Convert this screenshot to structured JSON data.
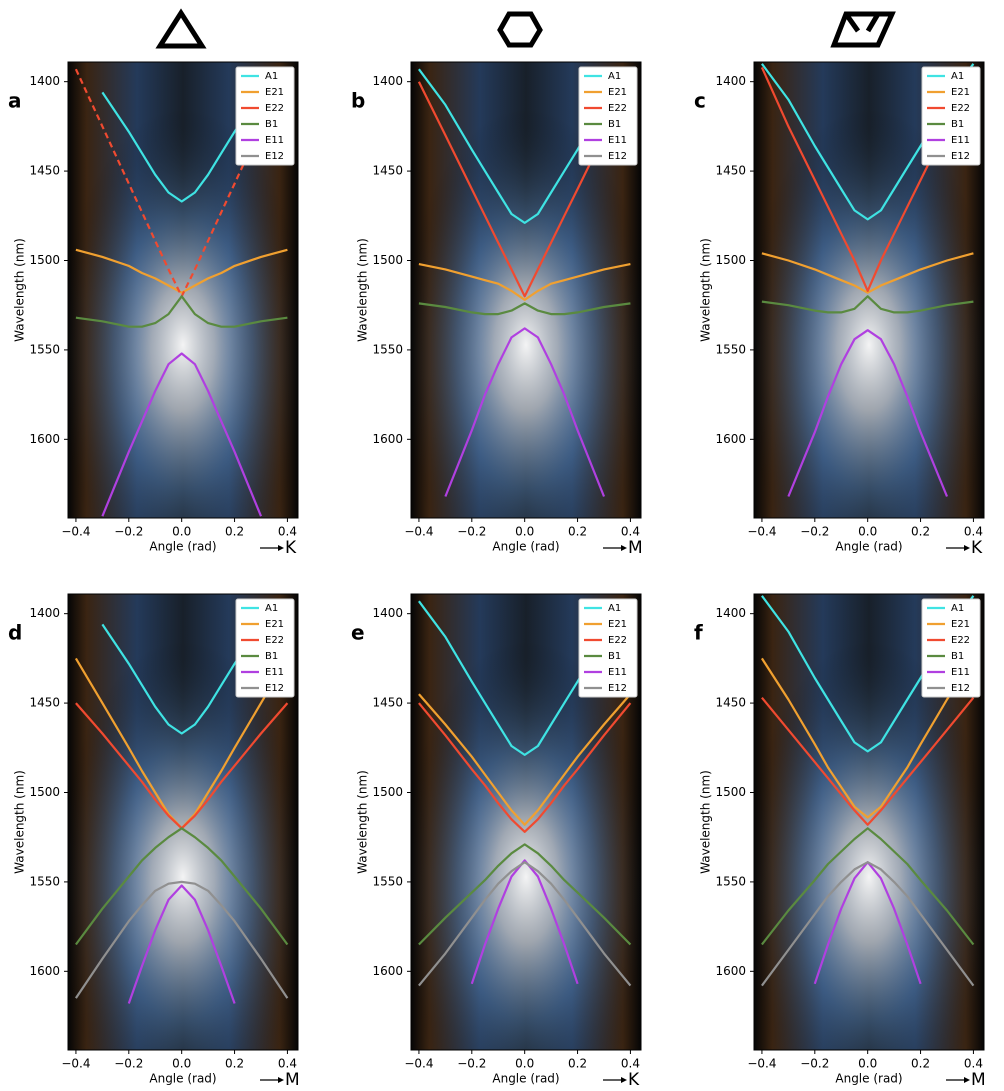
{
  "chart_data": [
    {
      "type": "line",
      "label": "a",
      "direction": "K",
      "xlabel": "Angle (rad)",
      "ylabel": "Wavelength (nm)",
      "x": [
        -0.4,
        -0.3,
        -0.2,
        -0.15,
        -0.1,
        -0.05,
        0,
        0.05,
        0.1,
        0.15,
        0.2,
        0.3,
        0.4
      ],
      "xlim": [
        -0.43,
        0.44
      ],
      "ylim": [
        1389,
        1644
      ],
      "y_inverted": true,
      "xticks": [
        {
          "value": -0.4,
          "label": "−0.4"
        },
        {
          "value": -0.2,
          "label": "−0.2"
        },
        {
          "value": 0,
          "label": "0.0"
        },
        0.2,
        0.4
      ],
      "yticks": [
        1400,
        1450,
        1500,
        1550,
        1600
      ],
      "legend": "upper right",
      "series": [
        {
          "name": "A1",
          "color": "#3fe3e3",
          "values": [
            null,
            1406,
            1428,
            1440,
            1452,
            1462,
            1467,
            1462,
            1452,
            1440,
            1428,
            1406,
            null
          ]
        },
        {
          "name": "E21",
          "color": "#f0a030",
          "values": [
            1494,
            1498,
            1503,
            1507,
            1510,
            1514,
            1518,
            1514,
            1510,
            1507,
            1503,
            1498,
            1494
          ]
        },
        {
          "name": "E22",
          "color": "#f04a30",
          "dashed": true,
          "values": [
            1393,
            1425,
            1457,
            1473,
            1489,
            1505,
            1520,
            1505,
            1489,
            1473,
            1457,
            1425,
            1393
          ]
        },
        {
          "name": "B1",
          "color": "#5a8a40",
          "values": [
            1532,
            1534,
            1537,
            1537,
            1535,
            1530,
            1520,
            1530,
            1535,
            1537,
            1537,
            1534,
            1532
          ]
        },
        {
          "name": "E11",
          "color": "#b040e0",
          "values": [
            null,
            1643,
            1607,
            1590,
            1573,
            1558,
            1552,
            1558,
            1573,
            1590,
            1607,
            1643,
            null
          ]
        },
        {
          "name": "E12",
          "color": "#909090",
          "values": [
            null,
            null,
            null,
            null,
            null,
            null,
            null,
            null,
            null,
            null,
            null,
            null,
            null
          ]
        }
      ]
    },
    {
      "type": "line",
      "label": "b",
      "direction": "M",
      "xlabel": "Angle (rad)",
      "ylabel": "Wavelength (nm)",
      "x": [
        -0.4,
        -0.3,
        -0.2,
        -0.15,
        -0.1,
        -0.05,
        0,
        0.05,
        0.1,
        0.15,
        0.2,
        0.3,
        0.4
      ],
      "xlim": [
        -0.43,
        0.44
      ],
      "ylim": [
        1389,
        1644
      ],
      "y_inverted": true,
      "xticks": [
        {
          "value": -0.4,
          "label": "−0.4"
        },
        {
          "value": -0.2,
          "label": "−0.2"
        },
        {
          "value": 0,
          "label": "0.0"
        },
        0.2,
        0.4
      ],
      "yticks": [
        1400,
        1450,
        1500,
        1550,
        1600
      ],
      "legend": "upper right",
      "series": [
        {
          "name": "A1",
          "color": "#3fe3e3",
          "values": [
            1393,
            1413,
            1438,
            1450,
            1462,
            1474,
            1479,
            1474,
            1462,
            1450,
            1438,
            1413,
            1393
          ]
        },
        {
          "name": "E21",
          "color": "#f0a030",
          "values": [
            1502,
            1505,
            1509,
            1511,
            1513,
            1517,
            1522,
            1517,
            1513,
            1511,
            1509,
            1505,
            1502
          ]
        },
        {
          "name": "E22",
          "color": "#f04a30",
          "values": [
            1400,
            1430,
            1460,
            1475,
            1490,
            1505,
            1520,
            1505,
            1490,
            1475,
            1460,
            1430,
            1400
          ]
        },
        {
          "name": "B1",
          "color": "#5a8a40",
          "values": [
            1524,
            1526,
            1529,
            1530,
            1530,
            1528,
            1524,
            1528,
            1530,
            1530,
            1529,
            1526,
            1524
          ]
        },
        {
          "name": "E11",
          "color": "#b040e0",
          "values": [
            null,
            1632,
            1595,
            1575,
            1558,
            1543,
            1538,
            1543,
            1558,
            1575,
            1595,
            1632,
            null
          ]
        },
        {
          "name": "E12",
          "color": "#909090",
          "values": [
            null,
            null,
            null,
            null,
            null,
            null,
            null,
            null,
            null,
            null,
            null,
            null,
            null
          ]
        }
      ]
    },
    {
      "type": "line",
      "label": "c",
      "direction": "K",
      "xlabel": "Angle (rad)",
      "ylabel": "Wavelength (nm)",
      "x": [
        -0.4,
        -0.3,
        -0.2,
        -0.15,
        -0.1,
        -0.05,
        0,
        0.05,
        0.1,
        0.15,
        0.2,
        0.3,
        0.4
      ],
      "xlim": [
        -0.43,
        0.44
      ],
      "ylim": [
        1389,
        1644
      ],
      "y_inverted": true,
      "xticks": [
        {
          "value": -0.4,
          "label": "−0.4"
        },
        {
          "value": -0.2,
          "label": "−0.2"
        },
        {
          "value": 0,
          "label": "0.0"
        },
        0.2,
        0.4
      ],
      "yticks": [
        1400,
        1450,
        1500,
        1550,
        1600
      ],
      "legend": "upper right",
      "series": [
        {
          "name": "A1",
          "color": "#3fe3e3",
          "values": [
            1390,
            1410,
            1436,
            1448,
            1460,
            1472,
            1477,
            1472,
            1460,
            1448,
            1436,
            1410,
            1390
          ]
        },
        {
          "name": "E21",
          "color": "#f0a030",
          "values": [
            1496,
            1500,
            1505,
            1508,
            1511,
            1514,
            1518,
            1514,
            1511,
            1508,
            1505,
            1500,
            1496
          ]
        },
        {
          "name": "E22",
          "color": "#f04a30",
          "values": [
            1392,
            1425,
            1455,
            1470,
            1485,
            1500,
            1517,
            1500,
            1485,
            1470,
            1455,
            1425,
            1392
          ]
        },
        {
          "name": "B1",
          "color": "#5a8a40",
          "values": [
            1523,
            1525,
            1528,
            1529,
            1529,
            1527,
            1520,
            1527,
            1529,
            1529,
            1528,
            1525,
            1523
          ]
        },
        {
          "name": "E11",
          "color": "#b040e0",
          "values": [
            null,
            1632,
            1596,
            1576,
            1558,
            1544,
            1539,
            1544,
            1558,
            1576,
            1596,
            1632,
            null
          ]
        },
        {
          "name": "E12",
          "color": "#909090",
          "values": [
            null,
            null,
            null,
            null,
            null,
            null,
            null,
            null,
            null,
            null,
            null,
            null,
            null
          ]
        }
      ]
    },
    {
      "type": "line",
      "label": "d",
      "direction": "M",
      "xlabel": "Angle (rad)",
      "ylabel": "Wavelength (nm)",
      "x": [
        -0.4,
        -0.3,
        -0.2,
        -0.15,
        -0.1,
        -0.05,
        0,
        0.05,
        0.1,
        0.15,
        0.2,
        0.3,
        0.4
      ],
      "xlim": [
        -0.43,
        0.44
      ],
      "ylim": [
        1389,
        1644
      ],
      "y_inverted": true,
      "xticks": [
        {
          "value": -0.4,
          "label": "−0.4"
        },
        {
          "value": -0.2,
          "label": "−0.2"
        },
        {
          "value": 0,
          "label": "0.0"
        },
        0.2,
        0.4
      ],
      "yticks": [
        1400,
        1450,
        1500,
        1550,
        1600
      ],
      "legend": "upper right",
      "series": [
        {
          "name": "A1",
          "color": "#3fe3e3",
          "values": [
            null,
            1406,
            1428,
            1440,
            1452,
            1462,
            1467,
            1462,
            1452,
            1440,
            1428,
            1406,
            null
          ]
        },
        {
          "name": "E21",
          "color": "#f0a030",
          "values": [
            1425,
            1450,
            1475,
            1488,
            1500,
            1512,
            1520,
            1512,
            1500,
            1488,
            1475,
            1450,
            1425
          ]
        },
        {
          "name": "E22",
          "color": "#f04a30",
          "values": [
            1450,
            1467,
            1485,
            1494,
            1504,
            1513,
            1520,
            1513,
            1504,
            1494,
            1485,
            1467,
            1450
          ]
        },
        {
          "name": "B1",
          "color": "#5a8a40",
          "values": [
            1585,
            1565,
            1547,
            1538,
            1531,
            1525,
            1520,
            1525,
            1531,
            1538,
            1547,
            1565,
            1585
          ]
        },
        {
          "name": "E11",
          "color": "#b040e0",
          "values": [
            null,
            null,
            1618,
            1597,
            1577,
            1560,
            1552,
            1560,
            1577,
            1597,
            1618,
            null,
            null
          ]
        },
        {
          "name": "E12",
          "color": "#909090",
          "values": [
            1615,
            1593,
            1572,
            1563,
            1555,
            1551,
            1550,
            1551,
            1555,
            1563,
            1572,
            1593,
            1615
          ]
        }
      ]
    },
    {
      "type": "line",
      "label": "e",
      "direction": "K",
      "xlabel": "Angle (rad)",
      "ylabel": "Wavelength (nm)",
      "x": [
        -0.4,
        -0.3,
        -0.2,
        -0.15,
        -0.1,
        -0.05,
        0,
        0.05,
        0.1,
        0.15,
        0.2,
        0.3,
        0.4
      ],
      "xlim": [
        -0.43,
        0.44
      ],
      "ylim": [
        1389,
        1644
      ],
      "y_inverted": true,
      "xticks": [
        {
          "value": -0.4,
          "label": "−0.4"
        },
        {
          "value": -0.2,
          "label": "−0.2"
        },
        {
          "value": 0,
          "label": "0.0"
        },
        0.2,
        0.4
      ],
      "yticks": [
        1400,
        1450,
        1500,
        1550,
        1600
      ],
      "legend": "upper right",
      "series": [
        {
          "name": "A1",
          "color": "#3fe3e3",
          "values": [
            1393,
            1413,
            1438,
            1450,
            1462,
            1474,
            1479,
            1474,
            1462,
            1450,
            1438,
            1413,
            1393
          ]
        },
        {
          "name": "E21",
          "color": "#f0a030",
          "values": [
            1445,
            1462,
            1480,
            1490,
            1500,
            1510,
            1518,
            1510,
            1500,
            1490,
            1480,
            1462,
            1445
          ]
        },
        {
          "name": "E22",
          "color": "#f04a30",
          "values": [
            1450,
            1468,
            1487,
            1496,
            1506,
            1515,
            1522,
            1515,
            1506,
            1496,
            1487,
            1468,
            1450
          ]
        },
        {
          "name": "B1",
          "color": "#5a8a40",
          "values": [
            1585,
            1570,
            1556,
            1549,
            1541,
            1534,
            1529,
            1534,
            1541,
            1549,
            1556,
            1570,
            1585
          ]
        },
        {
          "name": "E11",
          "color": "#b040e0",
          "values": [
            null,
            null,
            1607,
            1585,
            1565,
            1547,
            1538,
            1547,
            1565,
            1585,
            1607,
            null,
            null
          ]
        },
        {
          "name": "E12",
          "color": "#909090",
          "values": [
            1608,
            1590,
            1570,
            1560,
            1551,
            1544,
            1539,
            1544,
            1551,
            1560,
            1570,
            1590,
            1608
          ]
        }
      ]
    },
    {
      "type": "line",
      "label": "f",
      "direction": "M",
      "xlabel": "Angle (rad)",
      "ylabel": "Wavelength (nm)",
      "x": [
        -0.4,
        -0.3,
        -0.2,
        -0.15,
        -0.1,
        -0.05,
        0,
        0.05,
        0.1,
        0.15,
        0.2,
        0.3,
        0.4
      ],
      "xlim": [
        -0.43,
        0.44
      ],
      "ylim": [
        1389,
        1644
      ],
      "y_inverted": true,
      "xticks": [
        {
          "value": -0.4,
          "label": "−0.4"
        },
        {
          "value": -0.2,
          "label": "−0.2"
        },
        {
          "value": 0,
          "label": "0.0"
        },
        0.2,
        0.4
      ],
      "yticks": [
        1400,
        1450,
        1500,
        1550,
        1600
      ],
      "legend": "upper right",
      "series": [
        {
          "name": "A1",
          "color": "#3fe3e3",
          "values": [
            1390,
            1410,
            1436,
            1448,
            1460,
            1472,
            1477,
            1472,
            1460,
            1448,
            1436,
            1410,
            1390
          ]
        },
        {
          "name": "E21",
          "color": "#f0a030",
          "values": [
            1425,
            1448,
            1473,
            1486,
            1497,
            1508,
            1514,
            1508,
            1497,
            1486,
            1473,
            1448,
            1425
          ]
        },
        {
          "name": "E22",
          "color": "#f04a30",
          "values": [
            1447,
            1465,
            1483,
            1492,
            1501,
            1510,
            1518,
            1510,
            1501,
            1492,
            1483,
            1465,
            1447
          ]
        },
        {
          "name": "B1",
          "color": "#5a8a40",
          "values": [
            1585,
            1566,
            1549,
            1540,
            1533,
            1526,
            1520,
            1526,
            1533,
            1540,
            1549,
            1566,
            1585
          ]
        },
        {
          "name": "E11",
          "color": "#b040e0",
          "values": [
            null,
            null,
            1607,
            1585,
            1565,
            1548,
            1539,
            1548,
            1565,
            1585,
            1607,
            null,
            null
          ]
        },
        {
          "name": "E12",
          "color": "#909090",
          "values": [
            1608,
            1588,
            1568,
            1558,
            1550,
            1543,
            1539,
            1543,
            1550,
            1558,
            1568,
            1588,
            1608
          ]
        }
      ]
    }
  ]
}
